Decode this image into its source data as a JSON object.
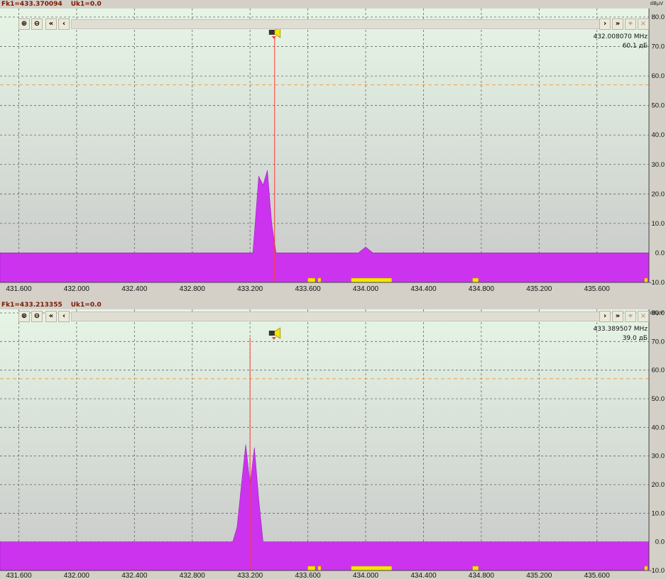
{
  "unit_label": "dBµV",
  "x_ticks": [
    "431.600",
    "432.000",
    "432.400",
    "432.800",
    "433.200",
    "433.600",
    "434.000",
    "434.400",
    "434.800",
    "435.200",
    "435.600"
  ],
  "y_ticks": [
    "80.0",
    "70.0",
    "60.0",
    "50.0",
    "40.0",
    "30.0",
    "20.0",
    "10.0",
    "0.0",
    "-10.0"
  ],
  "toolbar": {
    "zoom_in_icon": "zoom-in-icon",
    "zoom_out_icon": "zoom-out-icon",
    "fast_left_icon": "double-chevron-left-icon",
    "left_icon": "chevron-left-icon",
    "right_icon": "chevron-right-icon",
    "fast_right_icon": "double-chevron-right-icon"
  },
  "colors": {
    "fill": "#cc33ee",
    "bg_top": "#e6f5e6",
    "bg_bottom": "#c8c8c8",
    "marker": "#ff3b2f",
    "threshold": "#e8a050",
    "band": "#f5e600"
  },
  "panels": [
    {
      "fk": "Fk1=433.370094",
      "uk": "Uk1=0.0",
      "readout_freq": "432.008070 MHz",
      "readout_level": "60.1 дБ"
    },
    {
      "fk": "Fk1=433.213355",
      "uk": "Uk1=0.0",
      "readout_freq": "433.389507 MHz",
      "readout_level": "39.0 дБ"
    }
  ],
  "chart_data": [
    {
      "type": "area",
      "x_unit": "MHz",
      "y_unit": "dBµV",
      "xlim": [
        431.47,
        435.96
      ],
      "ylim": [
        -10,
        80
      ],
      "threshold": 57,
      "marker_x": 433.37,
      "grid": true,
      "series": [
        {
          "values": [
            [
              431.47,
              0
            ],
            [
              433.22,
              0
            ],
            [
              433.26,
              26
            ],
            [
              433.29,
              23
            ],
            [
              433.32,
              28
            ],
            [
              433.35,
              10
            ],
            [
              433.38,
              0
            ],
            [
              433.95,
              0
            ],
            [
              434.0,
              2
            ],
            [
              434.05,
              0
            ],
            [
              435.96,
              0
            ]
          ]
        }
      ],
      "bands": [
        [
          433.6,
          433.65
        ],
        [
          433.67,
          433.69
        ],
        [
          433.9,
          434.18
        ],
        [
          434.74,
          434.78
        ],
        [
          435.93,
          435.95
        ]
      ]
    },
    {
      "type": "area",
      "x_unit": "MHz",
      "y_unit": "dBµV",
      "xlim": [
        431.47,
        435.96
      ],
      "ylim": [
        -10,
        80
      ],
      "threshold": 57,
      "marker_x": 433.2,
      "grid": true,
      "series": [
        {
          "values": [
            [
              431.47,
              0
            ],
            [
              433.08,
              0
            ],
            [
              433.11,
              5
            ],
            [
              433.14,
              20
            ],
            [
              433.17,
              34
            ],
            [
              433.2,
              20
            ],
            [
              433.23,
              33
            ],
            [
              433.26,
              15
            ],
            [
              433.29,
              0
            ],
            [
              435.96,
              0
            ]
          ]
        }
      ],
      "bands": [
        [
          433.6,
          433.65
        ],
        [
          433.67,
          433.69
        ],
        [
          433.9,
          434.18
        ],
        [
          434.74,
          434.78
        ],
        [
          435.93,
          435.95
        ]
      ]
    }
  ]
}
